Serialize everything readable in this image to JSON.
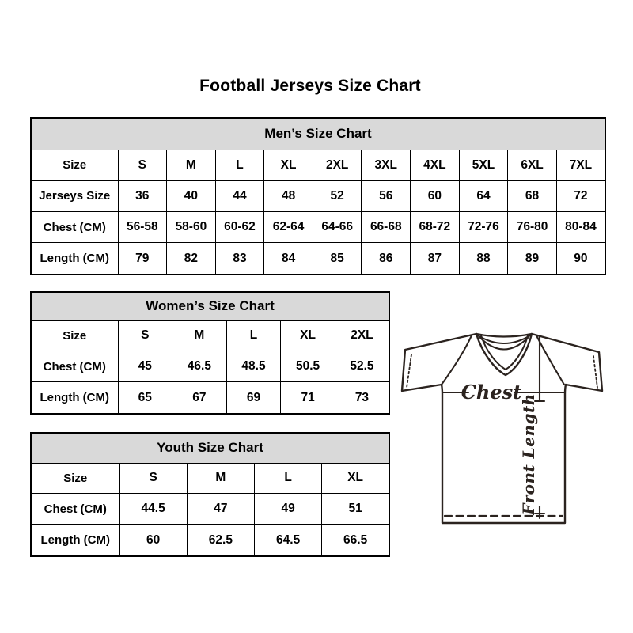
{
  "page": {
    "title": "Football Jerseys Size Chart"
  },
  "colors": {
    "background": "#ffffff",
    "header_bg": "#d9d9d9",
    "border": "#000000",
    "text": "#000000",
    "jersey_line": "#2b231f"
  },
  "tables": {
    "mens": {
      "title": "Men’s Size Chart",
      "rows": [
        [
          "Size",
          "S",
          "M",
          "L",
          "XL",
          "2XL",
          "3XL",
          "4XL",
          "5XL",
          "6XL",
          "7XL"
        ],
        [
          "Jerseys Size",
          "36",
          "40",
          "44",
          "48",
          "52",
          "56",
          "60",
          "64",
          "68",
          "72"
        ],
        [
          "Chest (CM)",
          "56-58",
          "58-60",
          "60-62",
          "62-64",
          "64-66",
          "66-68",
          "68-72",
          "72-76",
          "76-80",
          "80-84"
        ],
        [
          "Length (CM)",
          "79",
          "82",
          "83",
          "84",
          "85",
          "86",
          "87",
          "88",
          "89",
          "90"
        ]
      ]
    },
    "womens": {
      "title": "Women’s Size Chart",
      "rows": [
        [
          "Size",
          "S",
          "M",
          "L",
          "XL",
          "2XL"
        ],
        [
          "Chest (CM)",
          "45",
          "46.5",
          "48.5",
          "50.5",
          "52.5"
        ],
        [
          "Length (CM)",
          "65",
          "67",
          "69",
          "71",
          "73"
        ]
      ]
    },
    "youth": {
      "title": "Youth Size Chart",
      "rows": [
        [
          "Size",
          "S",
          "M",
          "L",
          "XL"
        ],
        [
          "Chest (CM)",
          "44.5",
          "47",
          "49",
          "51"
        ],
        [
          "Length (CM)",
          "60",
          "62.5",
          "64.5",
          "66.5"
        ]
      ]
    }
  },
  "diagram": {
    "chest_label": "Chest",
    "front_length_label": "Front Length"
  }
}
